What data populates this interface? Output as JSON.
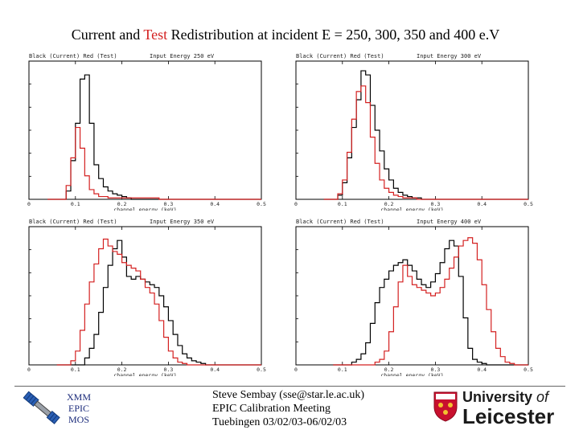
{
  "slide": {
    "title_pre": "Current and ",
    "title_red": "Test",
    "title_post": " Redistribution at incident E = 250, 300, 350 and 400 e.V"
  },
  "footer": {
    "mission_lines": [
      "XMM",
      "EPIC",
      "MOS"
    ],
    "author_lines": [
      "Steve Sembay (sse@star.le.ac.uk)",
      "EPIC Calibration Meeting",
      "Tuebingen 03/02/03-06/02/03"
    ],
    "logo_line1_a": "University ",
    "logo_line1_b": "of",
    "logo_line2": "Leicester",
    "colors": {
      "shield_red": "#c8102e",
      "mission_text": "#1a2a7a"
    }
  },
  "chart_data": [
    {
      "type": "line",
      "panel": "top-left",
      "title": "Input Energy 250 eV",
      "legend_text": "Black (Current) Red (Test)",
      "xlabel": "channel energy (keV)",
      "xlim": [
        0,
        0.5
      ],
      "xticks": [
        "0",
        "0.1",
        "0.2",
        "0.3",
        "0.4",
        "0.5"
      ],
      "ylim": [
        0,
        1
      ],
      "bins": [
        0.04,
        0.05,
        0.06,
        0.07,
        0.08,
        0.09,
        0.1,
        0.11,
        0.12,
        0.13,
        0.14,
        0.15,
        0.16,
        0.17,
        0.18,
        0.19,
        0.2,
        0.21,
        0.22,
        0.23,
        0.24,
        0.25,
        0.26,
        0.27
      ],
      "series": [
        {
          "name": "Current",
          "color": "#000000",
          "values": [
            0,
            0,
            0,
            0,
            0.06,
            0.28,
            0.55,
            0.87,
            0.9,
            0.55,
            0.25,
            0.15,
            0.09,
            0.06,
            0.04,
            0.03,
            0.02,
            0.01,
            0,
            0,
            0,
            0,
            0,
            0
          ]
        },
        {
          "name": "Test",
          "color": "#d42020",
          "values": [
            0,
            0,
            0,
            0,
            0.1,
            0.3,
            0.52,
            0.37,
            0.17,
            0.07,
            0.04,
            0.02,
            0.02,
            0.01,
            0.01,
            0.01,
            0.01,
            0.01,
            0.01,
            0.01,
            0.01,
            0.01,
            0.01,
            0.01
          ]
        }
      ]
    },
    {
      "type": "line",
      "panel": "top-right",
      "title": "Input Energy 300 eV",
      "legend_text": "Black (Current) Red (Test)",
      "xlabel": "channel energy (keV)",
      "xlim": [
        0,
        0.5
      ],
      "xticks": [
        "0",
        "0.1",
        "0.2",
        "0.3",
        "0.4",
        "0.5"
      ],
      "ylim": [
        0,
        1
      ],
      "bins": [
        0.06,
        0.07,
        0.08,
        0.09,
        0.1,
        0.11,
        0.12,
        0.13,
        0.14,
        0.15,
        0.16,
        0.17,
        0.18,
        0.19,
        0.2,
        0.21,
        0.22,
        0.23,
        0.24,
        0.25,
        0.26,
        0.27,
        0.28,
        0.29,
        0.3
      ],
      "series": [
        {
          "name": "Current",
          "color": "#000000",
          "values": [
            0,
            0,
            0,
            0.03,
            0.12,
            0.3,
            0.52,
            0.72,
            0.93,
            0.9,
            0.68,
            0.5,
            0.35,
            0.22,
            0.14,
            0.08,
            0.05,
            0.03,
            0.02,
            0.01,
            0.01,
            0,
            0,
            0,
            0
          ]
        },
        {
          "name": "Test",
          "color": "#d42020",
          "values": [
            0,
            0,
            0,
            0.04,
            0.14,
            0.34,
            0.58,
            0.78,
            0.82,
            0.7,
            0.45,
            0.26,
            0.14,
            0.08,
            0.05,
            0.03,
            0.02,
            0.01,
            0.01,
            0.01,
            0,
            0,
            0,
            0,
            0
          ]
        }
      ]
    },
    {
      "type": "line",
      "panel": "bottom-left",
      "title": "Input Energy 350 eV",
      "legend_text": "Black (Current) Red (Test)",
      "xlabel": "channel energy (keV)",
      "xlim": [
        0,
        0.5
      ],
      "xticks": [
        "0",
        "0.1",
        "0.2",
        "0.3",
        "0.4",
        "0.5"
      ],
      "ylim": [
        0,
        1
      ],
      "bins": [
        0.06,
        0.07,
        0.08,
        0.09,
        0.1,
        0.11,
        0.12,
        0.13,
        0.14,
        0.15,
        0.16,
        0.17,
        0.18,
        0.19,
        0.2,
        0.21,
        0.22,
        0.23,
        0.24,
        0.25,
        0.26,
        0.27,
        0.28,
        0.29,
        0.3,
        0.31,
        0.32,
        0.33,
        0.34,
        0.35,
        0.36,
        0.37,
        0.38,
        0.39
      ],
      "series": [
        {
          "name": "Current",
          "color": "#000000",
          "values": [
            0,
            0,
            0,
            0,
            0,
            0,
            0.05,
            0.12,
            0.22,
            0.38,
            0.56,
            0.72,
            0.84,
            0.9,
            0.78,
            0.64,
            0.62,
            0.64,
            0.62,
            0.6,
            0.58,
            0.56,
            0.5,
            0.42,
            0.32,
            0.22,
            0.14,
            0.08,
            0.05,
            0.03,
            0.02,
            0.01,
            0,
            0
          ]
        },
        {
          "name": "Test",
          "color": "#d42020",
          "values": [
            0,
            0,
            0,
            0.03,
            0.1,
            0.25,
            0.44,
            0.6,
            0.73,
            0.84,
            0.91,
            0.86,
            0.82,
            0.8,
            0.74,
            0.72,
            0.7,
            0.68,
            0.62,
            0.56,
            0.52,
            0.44,
            0.32,
            0.2,
            0.1,
            0.05,
            0.02,
            0.01,
            0,
            0,
            0,
            0,
            0,
            0
          ]
        }
      ]
    },
    {
      "type": "line",
      "panel": "bottom-right",
      "title": "Input Energy 400 eV",
      "legend_text": "Black (Current) Red (Test)",
      "xlabel": "channel energy (keV)",
      "xlim": [
        0,
        0.5
      ],
      "xticks": [
        "0",
        "0.1",
        "0.2",
        "0.3",
        "0.4",
        "0.5"
      ],
      "ylim": [
        0,
        1
      ],
      "bins": [
        0.08,
        0.09,
        0.1,
        0.11,
        0.12,
        0.13,
        0.14,
        0.15,
        0.16,
        0.17,
        0.18,
        0.19,
        0.2,
        0.21,
        0.22,
        0.23,
        0.24,
        0.25,
        0.26,
        0.27,
        0.28,
        0.29,
        0.3,
        0.31,
        0.32,
        0.33,
        0.34,
        0.35,
        0.36,
        0.37,
        0.38,
        0.39,
        0.4,
        0.41,
        0.42,
        0.43,
        0.44,
        0.45,
        0.46
      ],
      "series": [
        {
          "name": "Current",
          "color": "#000000",
          "values": [
            0,
            0,
            0,
            0,
            0.02,
            0.04,
            0.08,
            0.16,
            0.3,
            0.45,
            0.56,
            0.62,
            0.68,
            0.72,
            0.74,
            0.76,
            0.72,
            0.68,
            0.62,
            0.58,
            0.56,
            0.6,
            0.66,
            0.74,
            0.84,
            0.9,
            0.86,
            0.64,
            0.34,
            0.12,
            0.04,
            0.02,
            0.01,
            0,
            0,
            0,
            0,
            0,
            0
          ]
        },
        {
          "name": "Test",
          "color": "#d42020",
          "values": [
            0,
            0,
            0,
            0,
            0,
            0,
            0,
            0,
            0,
            0.02,
            0.04,
            0.1,
            0.24,
            0.42,
            0.6,
            0.72,
            0.64,
            0.58,
            0.56,
            0.54,
            0.52,
            0.5,
            0.52,
            0.56,
            0.62,
            0.7,
            0.78,
            0.86,
            0.9,
            0.92,
            0.88,
            0.76,
            0.58,
            0.4,
            0.24,
            0.12,
            0.06,
            0.02,
            0.01
          ]
        }
      ]
    }
  ]
}
